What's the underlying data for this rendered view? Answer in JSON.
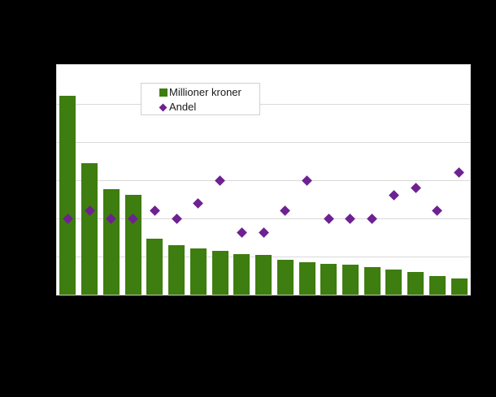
{
  "colors": {
    "page_background": "#000000",
    "plot_background": "#ffffff",
    "gridline": "#d9d9d9",
    "bar_green": "#3e7d0f",
    "marker_purple": "#6e2191",
    "legend_border": "#d0d0d0",
    "legend_text": "#1a1a1a"
  },
  "legend": {
    "items": [
      {
        "label": "Millioner kroner",
        "swatch": "square",
        "color": "#3e7d0f"
      },
      {
        "label": "Andel",
        "swatch": "diamond",
        "color": "#6e2191"
      }
    ]
  },
  "chart_data": {
    "type": "bar",
    "subtype": "bar + scatter combo",
    "title": "",
    "xlabel": "",
    "ylabel": "",
    "tick_labels_visible": false,
    "grid": "horizontal",
    "legend_position": "inside-top",
    "n_categories": 19,
    "categories": [
      "",
      "",
      "",
      "",
      "",
      "",
      "",
      "",
      "",
      "",
      "",
      "",
      "",
      "",
      "",
      "",
      "",
      "",
      ""
    ],
    "ylim": [
      0,
      6
    ],
    "y_unit_note": "axis labels hidden (black-on-black); values expressed in gridline units, 1 unit = one gridline interval, plot top = 6 units",
    "series": [
      {
        "name": "Millioner kroner",
        "type": "bar",
        "color": "#3e7d0f",
        "values": [
          5.21,
          3.45,
          2.77,
          2.62,
          1.47,
          1.3,
          1.21,
          1.16,
          1.07,
          1.05,
          0.91,
          0.86,
          0.81,
          0.79,
          0.72,
          0.66,
          0.6,
          0.48,
          0.43
        ]
      },
      {
        "name": "Andel",
        "type": "scatter",
        "marker": "diamond",
        "color": "#6e2191",
        "values": [
          2.0,
          2.2,
          2.0,
          2.0,
          2.2,
          2.0,
          2.4,
          3.0,
          1.62,
          1.62,
          2.2,
          3.0,
          2.0,
          2.0,
          2.0,
          2.6,
          2.8,
          2.2,
          3.2
        ]
      }
    ]
  }
}
